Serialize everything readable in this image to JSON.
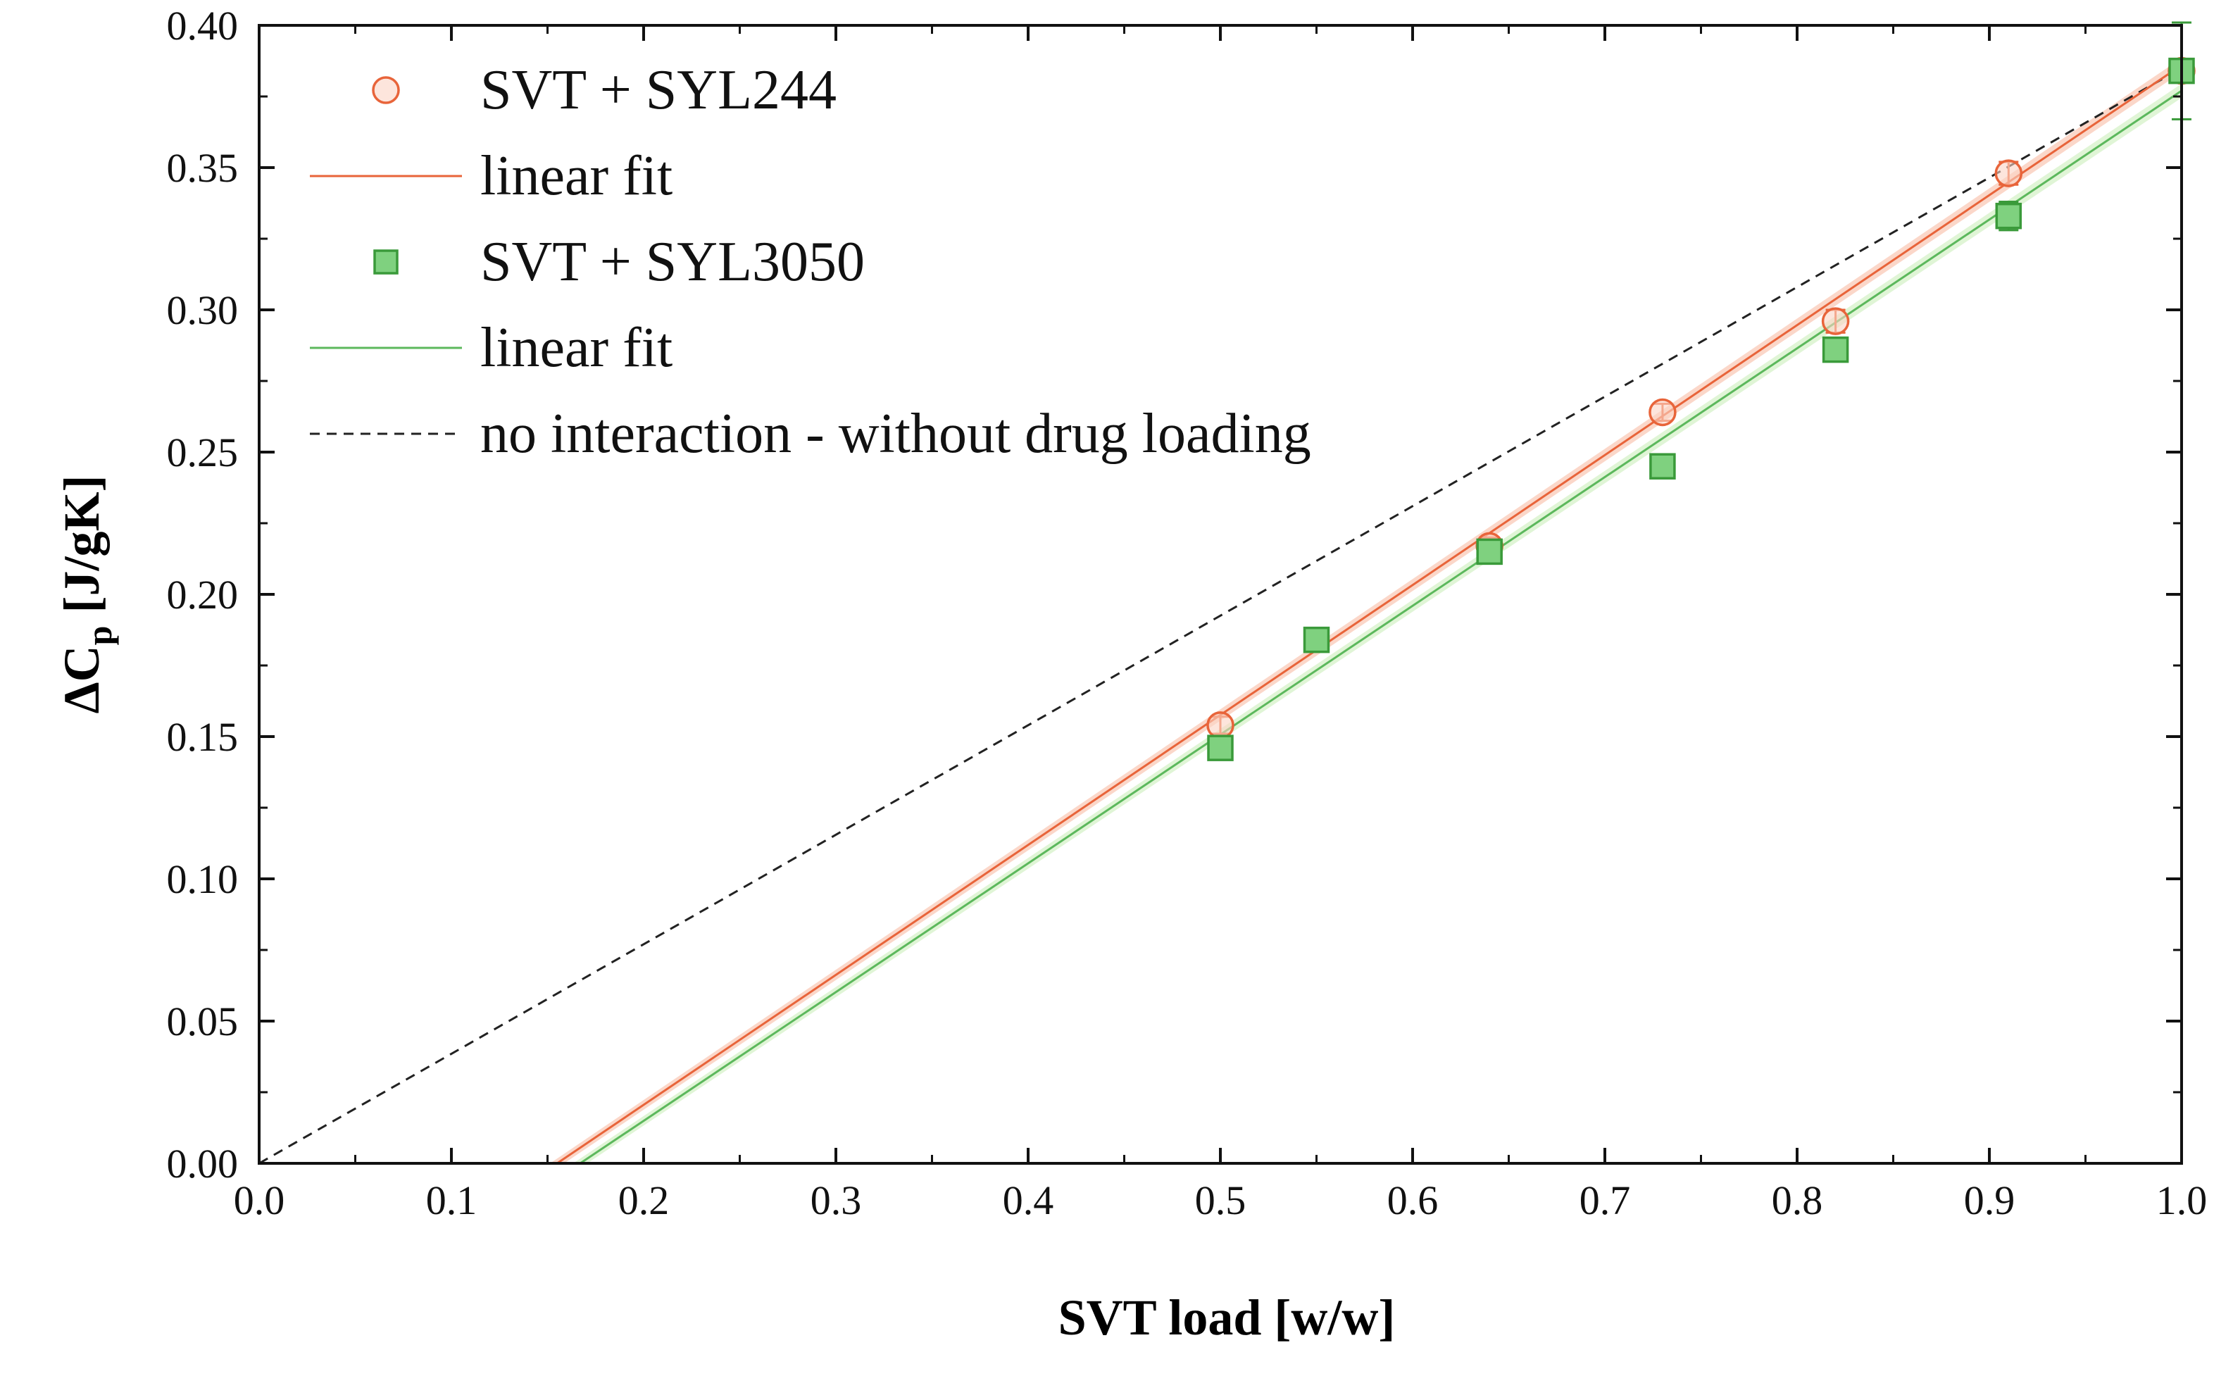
{
  "chart_data": {
    "type": "scatter",
    "xlabel": "SVT load [w/w]",
    "ylabel_main": "ΔC",
    "ylabel_sub": "p",
    "ylabel_units": " [J/gK]",
    "xlim": [
      0.0,
      1.0
    ],
    "ylim": [
      0.0,
      0.4
    ],
    "xticks": [
      "0.0",
      "0.1",
      "0.2",
      "0.3",
      "0.4",
      "0.5",
      "0.6",
      "0.7",
      "0.8",
      "0.9",
      "1.0"
    ],
    "yticks": [
      "0.00",
      "0.05",
      "0.10",
      "0.15",
      "0.20",
      "0.25",
      "0.30",
      "0.35",
      "0.40"
    ],
    "grid": false,
    "legend_position": "top-left",
    "series": [
      {
        "name": "SVT + SYL244",
        "marker": "circle",
        "color": "#e8643a",
        "fill": "#fbd3c4",
        "x": [
          0.5,
          0.64,
          0.73,
          0.82,
          0.91,
          1.0
        ],
        "y": [
          0.154,
          0.217,
          0.264,
          0.296,
          0.348,
          0.384
        ],
        "err": [
          0.003,
          0.003,
          0.003,
          0.004,
          0.004,
          0.004
        ]
      },
      {
        "name": "SVT + SYL3050",
        "marker": "square",
        "color": "#3a9a3a",
        "fill": "#7fd17f",
        "x": [
          0.5,
          0.55,
          0.64,
          0.73,
          0.82,
          0.91,
          1.0
        ],
        "y": [
          0.146,
          0.184,
          0.215,
          0.245,
          0.286,
          0.333,
          0.384
        ],
        "err": [
          0.003,
          0.003,
          0.003,
          0.003,
          0.003,
          0.005,
          0.017
        ]
      }
    ],
    "fits": [
      {
        "name": "linear fit",
        "color": "#e8643a",
        "band": "#f7b79c",
        "x": [
          0.155,
          1.0
        ],
        "y": [
          0.0,
          0.386
        ]
      },
      {
        "name": "linear fit",
        "color": "#5cb85c",
        "band": "#c6ecb4",
        "x": [
          0.167,
          1.0
        ],
        "y": [
          0.0,
          0.377
        ]
      }
    ],
    "reference": {
      "name": "no interaction - without drug loading",
      "x": [
        0.0,
        1.0
      ],
      "y": [
        0.0,
        0.385
      ],
      "style": "dashed",
      "color": "#222222"
    },
    "legend": [
      {
        "label": "SVT + SYL244",
        "kind": "circle",
        "color": "#e8643a",
        "fill": "#fbd3c4"
      },
      {
        "label": "linear fit",
        "kind": "line",
        "color": "#e8643a"
      },
      {
        "label": "SVT + SYL3050",
        "kind": "square",
        "color": "#3a9a3a",
        "fill": "#7fd17f"
      },
      {
        "label": "linear fit",
        "kind": "line",
        "color": "#5cb85c"
      },
      {
        "label": "no interaction - without drug loading",
        "kind": "dashed",
        "color": "#222222"
      }
    ]
  }
}
